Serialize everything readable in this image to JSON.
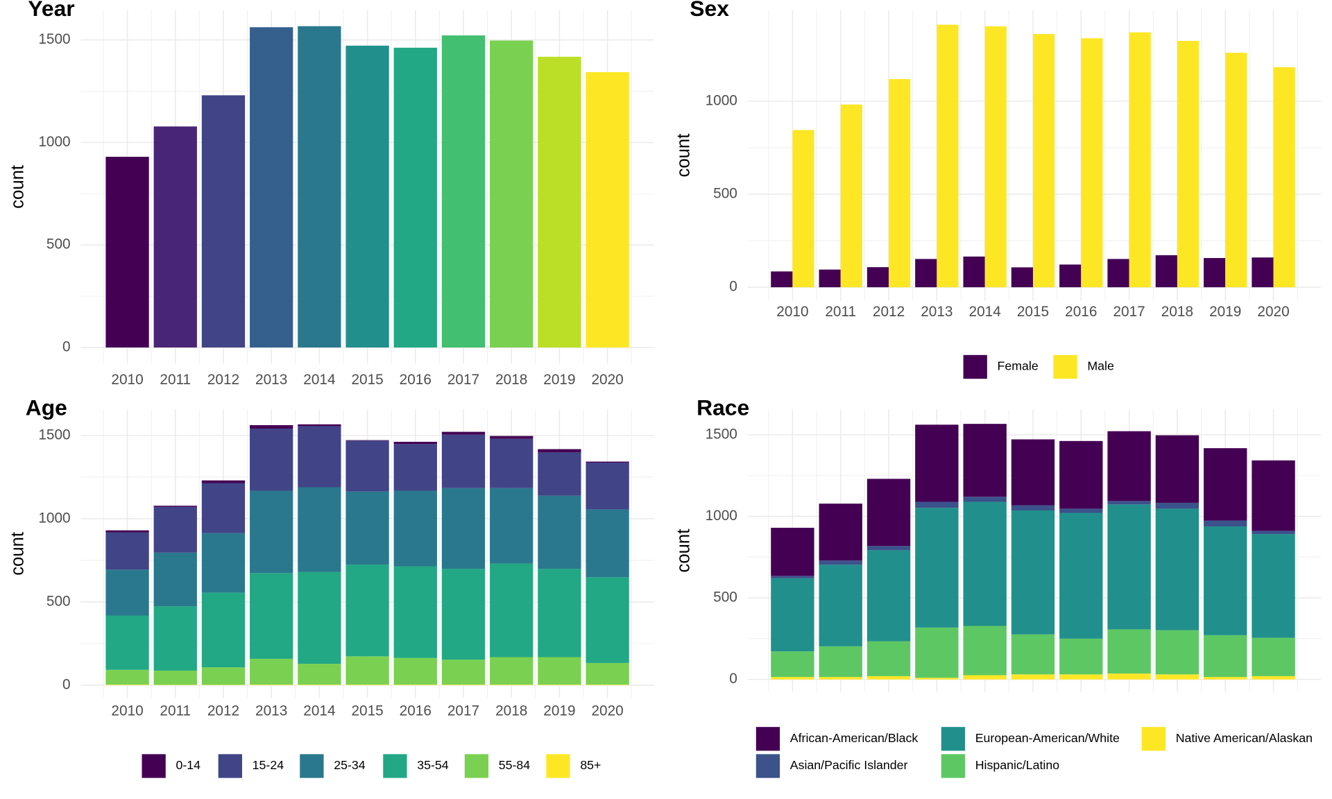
{
  "chart_data": [
    {
      "type": "bar",
      "title": "Year",
      "y_label": "count",
      "categories": [
        "2010",
        "2011",
        "2012",
        "2013",
        "2014",
        "2015",
        "2016",
        "2017",
        "2018",
        "2019",
        "2020"
      ],
      "values": [
        930,
        1078,
        1230,
        1562,
        1567,
        1472,
        1462,
        1522,
        1497,
        1418,
        1343
      ],
      "colors": [
        "#440154",
        "#482576",
        "#414487",
        "#35608D",
        "#2A788E",
        "#21908C",
        "#22A884",
        "#43BF71",
        "#7AD151",
        "#BBDF27",
        "#FDE725"
      ],
      "ylim": [
        -78,
        1645
      ],
      "yticks": [
        0,
        500,
        1000,
        1500
      ],
      "grid": true
    },
    {
      "type": "grouped_bar",
      "title": "Sex",
      "y_label": "count",
      "categories": [
        "2010",
        "2011",
        "2012",
        "2013",
        "2014",
        "2015",
        "2016",
        "2017",
        "2018",
        "2019",
        "2020"
      ],
      "series": [
        {
          "name": "Female",
          "color": "#440154",
          "values": [
            85,
            95,
            108,
            152,
            165,
            107,
            122,
            152,
            172,
            157,
            160
          ]
        },
        {
          "name": "Male",
          "color": "#FDE725",
          "values": [
            845,
            982,
            1119,
            1411,
            1402,
            1361,
            1338,
            1370,
            1324,
            1260,
            1183
          ]
        }
      ],
      "ylim": [
        -72,
        1489
      ],
      "yticks": [
        0,
        500,
        1000
      ],
      "grid": true,
      "legend": "bottom"
    },
    {
      "type": "stacked_bar",
      "title": "Age",
      "y_label": "count",
      "categories": [
        "2010",
        "2011",
        "2012",
        "2013",
        "2014",
        "2015",
        "2016",
        "2017",
        "2018",
        "2019",
        "2020"
      ],
      "series": [
        {
          "name": "0-14",
          "color": "#440154",
          "values": [
            12,
            7,
            16,
            21,
            11,
            3,
            13,
            17,
            17,
            20,
            6
          ]
        },
        {
          "name": "15-24",
          "color": "#414487",
          "values": [
            224,
            275,
            301,
            373,
            367,
            306,
            281,
            321,
            296,
            260,
            281
          ]
        },
        {
          "name": "25-34",
          "color": "#2A788E",
          "values": [
            276,
            322,
            357,
            495,
            510,
            439,
            454,
            485,
            454,
            439,
            408
          ]
        },
        {
          "name": "35-54",
          "color": "#22A884",
          "values": [
            326,
            387,
            449,
            515,
            551,
            551,
            551,
            546,
            562,
            531,
            515
          ]
        },
        {
          "name": "55-84",
          "color": "#7AD151",
          "values": [
            89,
            85,
            105,
            155,
            125,
            170,
            160,
            150,
            165,
            165,
            130
          ]
        },
        {
          "name": "85+",
          "color": "#FDE725",
          "values": [
            3,
            2,
            2,
            3,
            3,
            3,
            3,
            3,
            3,
            3,
            3
          ]
        }
      ],
      "ylim": [
        -78,
        1657
      ],
      "yticks": [
        0,
        500,
        1000,
        1500
      ],
      "grid": true,
      "legend": "bottom"
    },
    {
      "type": "stacked_bar",
      "title": "Race",
      "y_label": "count",
      "categories": [
        "2010",
        "2011",
        "2012",
        "2013",
        "2014",
        "2015",
        "2016",
        "2017",
        "2018",
        "2019",
        "2020"
      ],
      "series": [
        {
          "name": "African-American/Black",
          "color": "#440154",
          "values": [
            295,
            349,
            412,
            473,
            447,
            404,
            415,
            428,
            414,
            444,
            432
          ]
        },
        {
          "name": "Asian/Pacific Islander",
          "color": "#3B528B",
          "values": [
            15,
            26,
            26,
            37,
            31,
            32,
            26,
            21,
            36,
            36,
            20
          ]
        },
        {
          "name": "European-American/White",
          "color": "#21908C",
          "values": [
            448,
            500,
            558,
            734,
            761,
            760,
            771,
            766,
            745,
            667,
            636
          ]
        },
        {
          "name": "Hispanic/Latino",
          "color": "#5DC863",
          "values": [
            157,
            188,
            214,
            308,
            302,
            245,
            219,
            271,
            271,
            256,
            235
          ]
        },
        {
          "name": "Native American/Alaskan",
          "color": "#FDE725",
          "values": [
            15,
            15,
            20,
            10,
            26,
            31,
            31,
            36,
            31,
            15,
            20
          ]
        }
      ],
      "ylim": [
        -78,
        1656
      ],
      "yticks": [
        0,
        500,
        1000,
        1500
      ],
      "grid": true,
      "legend": "bottom"
    }
  ]
}
